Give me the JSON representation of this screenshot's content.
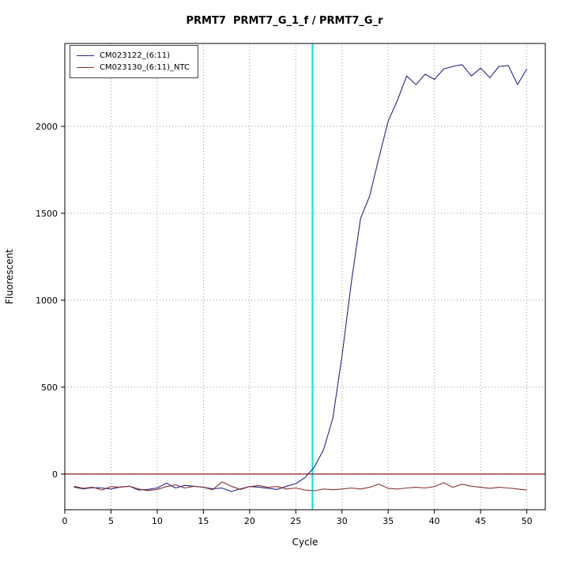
{
  "page": {
    "background": "#ffffff"
  },
  "chart_data": {
    "type": "line",
    "title": "PRMT7  PRMT7_G_1_f / PRMT7_G_r",
    "xlabel": "Cycle",
    "ylabel": "Fluorescent",
    "xlim": [
      0,
      52
    ],
    "ylim": [
      -205,
      2477
    ],
    "x_ticks": [
      0,
      5,
      10,
      15,
      20,
      25,
      30,
      35,
      40,
      45,
      50
    ],
    "y_ticks": [
      0,
      500,
      1000,
      1500,
      2000
    ],
    "grid": "dotted",
    "grid_color": "#999999",
    "legend_position": "top-left",
    "threshold_line_y": 0,
    "threshold_line_color": "#8b1a1a",
    "ct_line_x": 26.8,
    "ct_line_color": "#00e6e6",
    "x_start": 1,
    "series": [
      {
        "name": "CM023122_(6:11)",
        "color": "#26268c",
        "values": [
          -75,
          -85,
          -78,
          -80,
          -86,
          -74,
          -70,
          -92,
          -88,
          -80,
          -52,
          -80,
          -65,
          -70,
          -76,
          -85,
          -80,
          -100,
          -85,
          -72,
          -75,
          -82,
          -88,
          -70,
          -55,
          -20,
          40,
          140,
          320,
          680,
          1100,
          1470,
          1600,
          1820,
          2030,
          2150,
          2290,
          2240,
          2300,
          2270,
          2330,
          2345,
          2355,
          2290,
          2335,
          2280,
          2345,
          2350,
          2240,
          2330
        ]
      },
      {
        "name": "CM023130_(6:11)_NTC",
        "color": "#8b3434",
        "values": [
          -70,
          -82,
          -75,
          -92,
          -72,
          -76,
          -70,
          -86,
          -95,
          -88,
          -72,
          -62,
          -80,
          -70,
          -76,
          -90,
          -45,
          -70,
          -88,
          -72,
          -66,
          -76,
          -72,
          -86,
          -80,
          -92,
          -96,
          -86,
          -90,
          -86,
          -80,
          -86,
          -76,
          -58,
          -82,
          -86,
          -80,
          -76,
          -80,
          -72,
          -50,
          -76,
          -58,
          -70,
          -76,
          -82,
          -76,
          -80,
          -86,
          -92
        ]
      }
    ]
  }
}
